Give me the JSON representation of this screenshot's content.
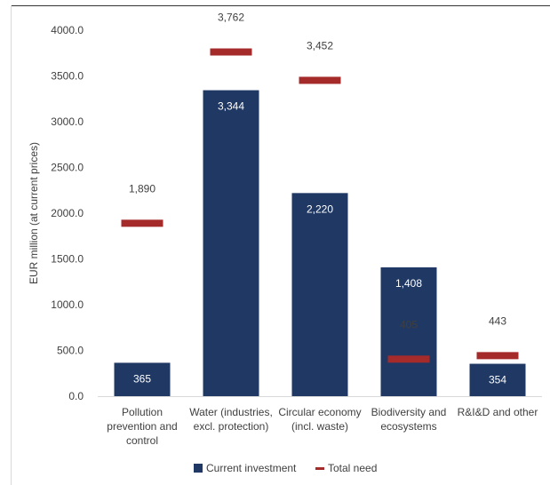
{
  "chart_data": {
    "type": "bar",
    "title": "",
    "xlabel": "",
    "ylabel": "EUR million (at current prices)",
    "ylim": [
      0,
      4000
    ],
    "yticks": [
      "0.0",
      "500.0",
      "1000.0",
      "1500.0",
      "2000.0",
      "2500.0",
      "3000.0",
      "3500.0",
      "4000.0"
    ],
    "categories": [
      [
        "Pollution",
        "prevention and",
        "control"
      ],
      [
        "Water (industries,",
        "excl. protection)"
      ],
      [
        "Circular economy",
        "(incl. waste)"
      ],
      [
        "Biodiversity and",
        "ecosystems"
      ],
      [
        "R&I&D and other"
      ]
    ],
    "series": [
      {
        "name": "Current investment",
        "kind": "bar",
        "color": "#1f3864",
        "values": [
          365,
          3344,
          2220,
          1408,
          354
        ],
        "labels": [
          "365",
          "3,344",
          "2,220",
          "1,408",
          "354"
        ]
      },
      {
        "name": "Total need",
        "kind": "marker",
        "color": "#a52a2a",
        "values": [
          1890,
          3762,
          3452,
          405,
          443
        ],
        "labels": [
          "1,890",
          "3,762",
          "3,452",
          "405",
          "443"
        ]
      }
    ],
    "legend": "bottom",
    "grid": false
  }
}
